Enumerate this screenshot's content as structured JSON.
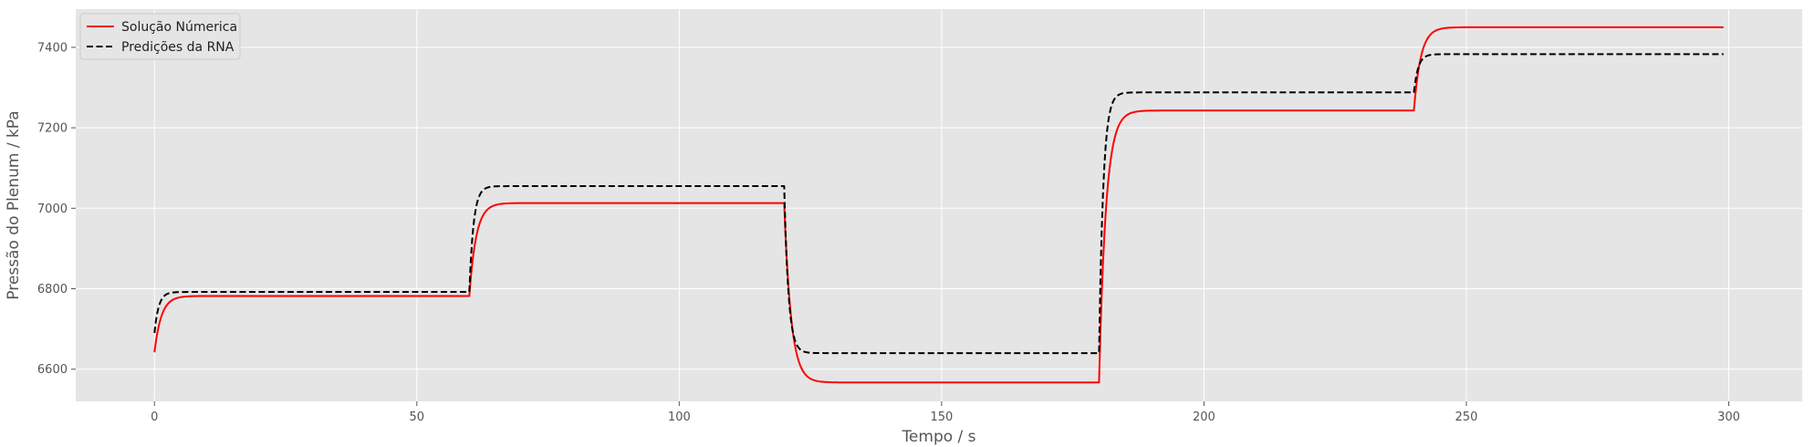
{
  "chart_data": {
    "type": "line",
    "xlabel": "Tempo / s",
    "ylabel": "Pressão do Plenum / kPa",
    "xlim": [
      -15,
      314
    ],
    "ylim": [
      6520,
      7495
    ],
    "xticks": [
      0,
      50,
      100,
      150,
      200,
      250,
      300
    ],
    "yticks": [
      6600,
      6800,
      7000,
      7200,
      7400
    ],
    "grid": true,
    "legend_position": "top-left",
    "series": [
      {
        "name": "Solução Númerica",
        "color": "#ff0000",
        "dash": "solid",
        "start_value": 6642,
        "segments": [
          {
            "t0": 0,
            "t1": 60,
            "target": 6782
          },
          {
            "t0": 60,
            "t1": 120,
            "target": 7013
          },
          {
            "t0": 120,
            "t1": 180,
            "target": 6567
          },
          {
            "t0": 180,
            "t1": 240,
            "target": 7243
          },
          {
            "t0": 240,
            "t1": 299,
            "target": 7450
          }
        ],
        "time_constant_s": 1.3
      },
      {
        "name": "Predições da RNA",
        "color": "#000000",
        "dash": "dashed",
        "start_value": 6690,
        "segments": [
          {
            "t0": 0,
            "t1": 60,
            "target": 6792
          },
          {
            "t0": 60,
            "t1": 120,
            "target": 7055
          },
          {
            "t0": 120,
            "t1": 180,
            "target": 6640
          },
          {
            "t0": 180,
            "t1": 240,
            "target": 7288
          },
          {
            "t0": 240,
            "t1": 299,
            "target": 7383
          }
        ],
        "time_constant_s": 0.8
      }
    ]
  }
}
